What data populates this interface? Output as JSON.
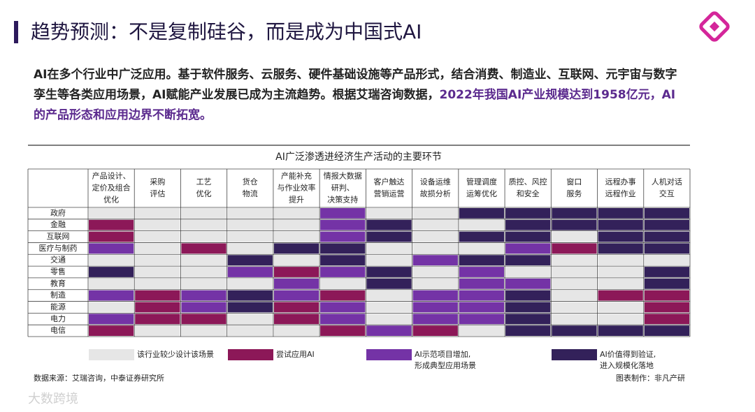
{
  "header": {
    "title": "趋势预测：不是复制硅谷，而是成为中国式AI"
  },
  "body": {
    "segments": [
      {
        "text": "AI在多个行业中广泛应用。基于软件服务、云服务、硬件基础设施等产品形式，结合消费、制造业、互联网、元宇宙与数字孪生等各类应用场景，AI赋能产业发展已成为主流趋势。根据艾瑞咨询数据，",
        "emphasis": false
      },
      {
        "text": "2022年我国AI产业规模达到1958亿元，AI的产品形态和应用边界不断拓宽。",
        "emphasis": true
      }
    ]
  },
  "table": {
    "title": "AI广泛渗透进经济生产活动的主要环节",
    "columns": [
      [
        "产品设计、",
        "定价及组合",
        "优化"
      ],
      [
        "采购",
        "评估"
      ],
      [
        "工艺",
        "优化"
      ],
      [
        "货仓",
        "物流"
      ],
      [
        "产能补充",
        "与作业效率",
        "提升"
      ],
      [
        "情报大数据",
        "研判、",
        "决策支持"
      ],
      [
        "客户触达",
        "营销运营"
      ],
      [
        "设备运维",
        "故损分析"
      ],
      [
        "管理调度",
        "运筹优化"
      ],
      [
        "质控、风控",
        "和安全"
      ],
      [
        "窗口",
        "服务"
      ],
      [
        "远程办事",
        "远程作业"
      ],
      [
        "人机对话",
        "交互"
      ]
    ],
    "rows": [
      {
        "label": "政府",
        "cells": [
          0,
          0,
          0,
          0,
          0,
          2,
          0,
          0,
          3,
          3,
          3,
          3,
          3
        ]
      },
      {
        "label": "金融",
        "cells": [
          1,
          0,
          0,
          0,
          0,
          2,
          3,
          0,
          0,
          3,
          3,
          3,
          3
        ]
      },
      {
        "label": "互联网",
        "cells": [
          1,
          0,
          0,
          0,
          0,
          2,
          3,
          0,
          3,
          3,
          0,
          3,
          3
        ]
      },
      {
        "label": "医疗与制药",
        "cells": [
          2,
          0,
          1,
          0,
          3,
          3,
          0,
          0,
          0,
          2,
          1,
          3,
          3
        ]
      },
      {
        "label": "交通",
        "cells": [
          0,
          0,
          0,
          3,
          0,
          3,
          0,
          2,
          3,
          3,
          0,
          0,
          0
        ]
      },
      {
        "label": "零售",
        "cells": [
          3,
          0,
          0,
          2,
          1,
          2,
          3,
          0,
          2,
          0,
          0,
          0,
          3
        ]
      },
      {
        "label": "教育",
        "cells": [
          0,
          0,
          0,
          0,
          2,
          0,
          3,
          0,
          2,
          2,
          0,
          0,
          3
        ]
      },
      {
        "label": "制造",
        "cells": [
          2,
          1,
          2,
          3,
          2,
          1,
          0,
          2,
          2,
          3,
          0,
          1,
          1
        ]
      },
      {
        "label": "能源",
        "cells": [
          0,
          1,
          2,
          3,
          1,
          2,
          0,
          2,
          2,
          3,
          0,
          0,
          1
        ]
      },
      {
        "label": "电力",
        "cells": [
          2,
          1,
          1,
          0,
          1,
          2,
          0,
          2,
          2,
          3,
          0,
          0,
          1
        ]
      },
      {
        "label": "电信",
        "cells": [
          1,
          0,
          0,
          0,
          0,
          1,
          2,
          1,
          0,
          3,
          3,
          3,
          3
        ]
      }
    ]
  },
  "legend": [
    {
      "color": "#e6e6e6",
      "lines": [
        "该行业较少设计该场景"
      ]
    },
    {
      "color": "#8c1858",
      "lines": [
        "尝试应用AI"
      ]
    },
    {
      "color": "#7433a6",
      "lines": [
        "AI示范项目增加,",
        "形成典型应用场景"
      ]
    },
    {
      "color": "#33215a",
      "lines": [
        "AI价值得到验证,",
        "进入规模化落地"
      ]
    }
  ],
  "footer": {
    "source": "数据来源：艾瑞咨询，中泰证券研究所",
    "credit": "图表制作：非凡产研"
  },
  "watermark": "大数跨境"
}
